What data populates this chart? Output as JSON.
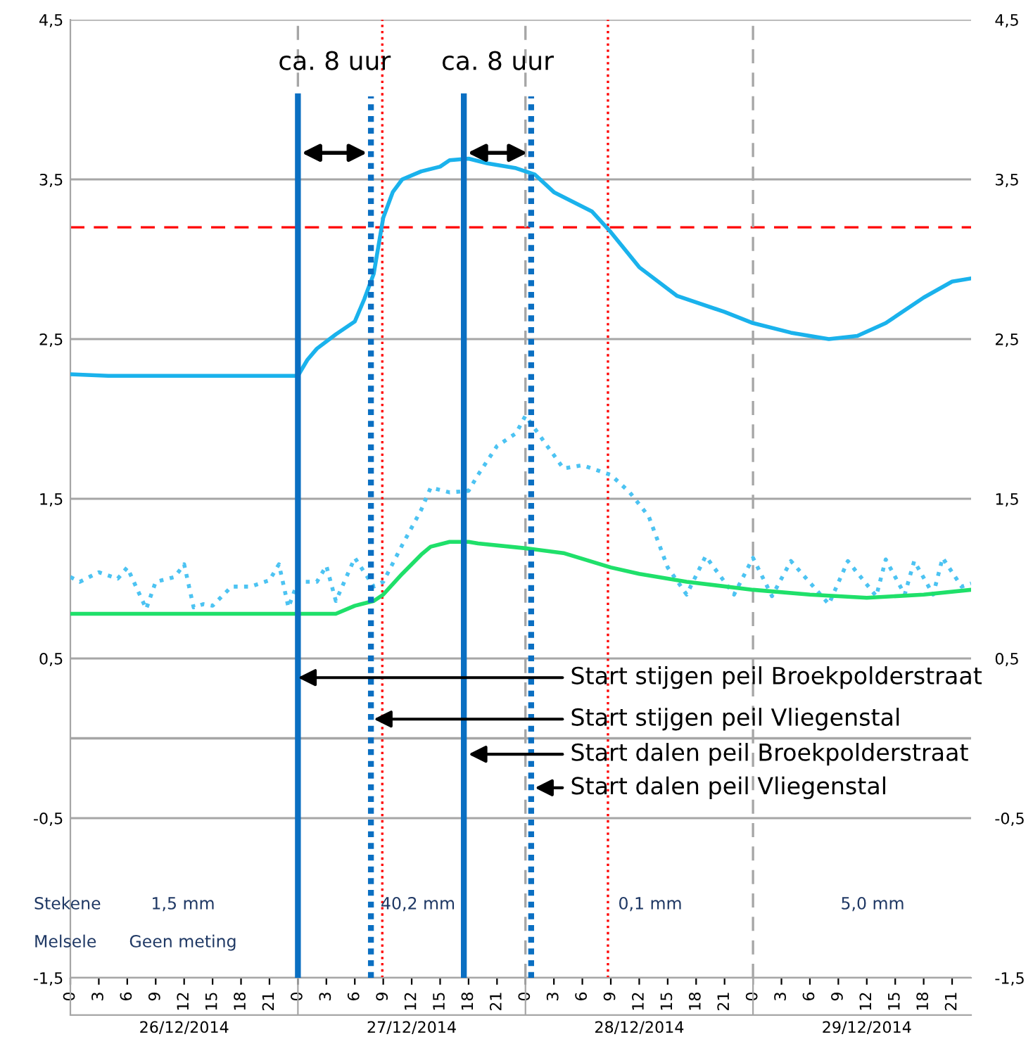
{
  "chart_data": {
    "type": "line",
    "xlim": [
      "2014-12-26T00:00",
      "2014-12-29T23:00"
    ],
    "xticks": [
      {
        "value": "2014-12-26T00:00",
        "label": "0"
      },
      {
        "value": "2014-12-26T03:00",
        "label": "3"
      },
      {
        "value": "2014-12-26T06:00",
        "label": "6"
      },
      {
        "value": "2014-12-26T09:00",
        "label": "9"
      },
      {
        "value": "2014-12-26T12:00",
        "label": "12"
      },
      {
        "value": "2014-12-26T15:00",
        "label": "15"
      },
      {
        "value": "2014-12-26T18:00",
        "label": "18"
      },
      {
        "value": "2014-12-26T21:00",
        "label": "21"
      },
      {
        "value": "2014-12-27T00:00",
        "label": "0"
      },
      {
        "value": "2014-12-27T03:00",
        "label": "3"
      },
      {
        "value": "2014-12-27T06:00",
        "label": "6"
      },
      {
        "value": "2014-12-27T09:00",
        "label": "9"
      },
      {
        "value": "2014-12-27T12:00",
        "label": "12"
      },
      {
        "value": "2014-12-27T15:00",
        "label": "15"
      },
      {
        "value": "2014-12-27T18:00",
        "label": "18"
      },
      {
        "value": "2014-12-27T21:00",
        "label": "21"
      },
      {
        "value": "2014-12-28T00:00",
        "label": "0"
      },
      {
        "value": "2014-12-28T03:00",
        "label": "3"
      },
      {
        "value": "2014-12-28T06:00",
        "label": "6"
      },
      {
        "value": "2014-12-28T09:00",
        "label": "9"
      },
      {
        "value": "2014-12-28T12:00",
        "label": "12"
      },
      {
        "value": "2014-12-28T15:00",
        "label": "15"
      },
      {
        "value": "2014-12-28T18:00",
        "label": "18"
      },
      {
        "value": "2014-12-28T21:00",
        "label": "21"
      },
      {
        "value": "2014-12-29T00:00",
        "label": "0"
      },
      {
        "value": "2014-12-29T03:00",
        "label": "3"
      },
      {
        "value": "2014-12-29T06:00",
        "label": "6"
      },
      {
        "value": "2014-12-29T09:00",
        "label": "9"
      },
      {
        "value": "2014-12-29T12:00",
        "label": "12"
      },
      {
        "value": "2014-12-29T15:00",
        "label": "15"
      },
      {
        "value": "2014-12-29T18:00",
        "label": "18"
      },
      {
        "value": "2014-12-29T21:00",
        "label": "21"
      }
    ],
    "x2lim": [
      "2014-12-26T00:00",
      "2014-12-29T23:00"
    ],
    "x2ticks": [
      {
        "value": "2014-12-26T00:00",
        "label": null
      },
      {
        "value": "2014-12-26T12:00",
        "label": "26/12/2014"
      },
      {
        "value": "2014-12-27T00:00",
        "label": null
      },
      {
        "value": "2014-12-27T12:00",
        "label": "27/12/2014"
      },
      {
        "value": "2014-12-28T00:00",
        "label": null
      },
      {
        "value": "2014-12-28T12:00",
        "label": "28/12/2014"
      },
      {
        "value": "2014-12-29T00:00",
        "label": null
      },
      {
        "value": "2014-12-29T12:00",
        "label": "29/12/2014"
      }
    ],
    "ylim": [
      -1.5,
      4.5
    ],
    "yticks": [
      {
        "value": -1.5,
        "label": "-1,5"
      },
      {
        "value": -0.5,
        "label": "-0,5"
      },
      {
        "value": 0.5,
        "label": "0,5"
      },
      {
        "value": 1.5,
        "label": "1,5"
      },
      {
        "value": 2.5,
        "label": "2,5"
      },
      {
        "value": 3.5,
        "label": "3,5"
      },
      {
        "value": 4.5,
        "label": "4,5"
      }
    ],
    "y2lim": [
      -1.5,
      4.5
    ],
    "y2ticks": [
      {
        "value": -1.5,
        "label": "-1,5"
      },
      {
        "value": -0.5,
        "label": "-0,5"
      },
      {
        "value": 0.5,
        "label": "0,5"
      },
      {
        "value": 1.5,
        "label": "1,5"
      },
      {
        "value": 2.5,
        "label": "2,5"
      },
      {
        "value": 3.5,
        "label": "3,5"
      },
      {
        "value": 4.5,
        "label": "4,5"
      }
    ],
    "grid": "y",
    "series": [
      {
        "color": "#1ab2ec",
        "line_style": "solid",
        "x": [
          "2014-12-26T00:00",
          "2014-12-26T04:00",
          "2014-12-27T00:00",
          "2014-12-27T01:00",
          "2014-12-27T02:00",
          "2014-12-27T04:00",
          "2014-12-27T06:00",
          "2014-12-27T07:00",
          "2014-12-27T08:00",
          "2014-12-27T09:00",
          "2014-12-27T10:00",
          "2014-12-27T11:00",
          "2014-12-27T13:00",
          "2014-12-27T15:00",
          "2014-12-27T16:00",
          "2014-12-27T18:00",
          "2014-12-27T20:00",
          "2014-12-27T23:00",
          "2014-12-28T01:00",
          "2014-12-28T03:00",
          "2014-12-28T07:00",
          "2014-12-28T09:00",
          "2014-12-28T12:00",
          "2014-12-28T16:00",
          "2014-12-28T21:00",
          "2014-12-29T00:00",
          "2014-12-29T04:00",
          "2014-12-29T08:00",
          "2014-12-29T11:00",
          "2014-12-29T14:00",
          "2014-12-29T18:00",
          "2014-12-29T21:00",
          "2014-12-29T23:00"
        ],
        "values": [
          2.28,
          2.27,
          2.27,
          2.37,
          2.44,
          2.53,
          2.61,
          2.75,
          2.91,
          3.26,
          3.42,
          3.5,
          3.55,
          3.58,
          3.62,
          3.63,
          3.6,
          3.57,
          3.53,
          3.42,
          3.3,
          3.17,
          2.95,
          2.77,
          2.67,
          2.6,
          2.54,
          2.5,
          2.52,
          2.6,
          2.76,
          2.86,
          2.88
        ]
      },
      {
        "color": "#4cc3f2",
        "line_style": "dotted",
        "x": [
          "2014-12-26T00:00",
          "2014-12-26T01:00",
          "2014-12-26T03:00",
          "2014-12-26T05:00",
          "2014-12-26T06:00",
          "2014-12-26T08:00",
          "2014-12-26T09:00",
          "2014-12-26T11:00",
          "2014-12-26T12:00",
          "2014-12-26T13:00",
          "2014-12-26T14:00",
          "2014-12-26T15:00",
          "2014-12-26T17:00",
          "2014-12-26T19:00",
          "2014-12-26T21:00",
          "2014-12-26T22:00",
          "2014-12-26T23:00",
          "2014-12-27T00:00",
          "2014-12-27T02:00",
          "2014-12-27T03:00",
          "2014-12-27T04:00",
          "2014-12-27T06:00",
          "2014-12-27T08:00",
          "2014-12-27T09:00",
          "2014-12-27T11:00",
          "2014-12-27T13:00",
          "2014-12-27T14:00",
          "2014-12-27T16:00",
          "2014-12-27T18:00",
          "2014-12-27T19:00",
          "2014-12-27T21:00",
          "2014-12-27T23:00",
          "2014-12-28T00:00",
          "2014-12-28T04:00",
          "2014-12-28T06:00",
          "2014-12-28T09:00",
          "2014-12-28T11:00",
          "2014-12-28T13:00",
          "2014-12-28T15:00",
          "2014-12-28T17:00",
          "2014-12-28T19:00",
          "2014-12-28T22:00",
          "2014-12-29T00:00",
          "2014-12-29T02:00",
          "2014-12-29T04:00",
          "2014-12-29T08:00",
          "2014-12-29T10:00",
          "2014-12-29T13:00",
          "2014-12-29T14:00",
          "2014-12-29T16:00",
          "2014-12-29T17:00",
          "2014-12-29T19:00",
          "2014-12-29T20:00",
          "2014-12-29T22:00",
          "2014-12-29T23:00"
        ],
        "values": [
          1.01,
          0.98,
          1.04,
          1.0,
          1.07,
          0.81,
          0.98,
          1.01,
          1.09,
          0.82,
          0.84,
          0.83,
          0.95,
          0.95,
          0.99,
          1.09,
          0.82,
          0.98,
          0.98,
          1.08,
          0.86,
          1.13,
          0.95,
          0.98,
          1.21,
          1.43,
          1.57,
          1.54,
          1.55,
          1.65,
          1.83,
          1.91,
          2.02,
          1.69,
          1.71,
          1.65,
          1.54,
          1.39,
          1.07,
          0.9,
          1.14,
          0.9,
          1.13,
          0.89,
          1.11,
          0.84,
          1.11,
          0.89,
          1.12,
          0.9,
          1.11,
          0.9,
          1.13,
          0.95,
          0.97
        ]
      },
      {
        "color": "#1fe06a",
        "line_style": "solid",
        "x": [
          "2014-12-26T00:00",
          "2014-12-27T04:00",
          "2014-12-27T06:00",
          "2014-12-27T08:00",
          "2014-12-27T09:00",
          "2014-12-27T11:00",
          "2014-12-27T13:00",
          "2014-12-27T14:00",
          "2014-12-27T16:00",
          "2014-12-27T18:00",
          "2014-12-27T19:00",
          "2014-12-28T00:00",
          "2014-12-28T04:00",
          "2014-12-28T09:00",
          "2014-12-28T12:00",
          "2014-12-28T17:00",
          "2014-12-29T00:00",
          "2014-12-29T06:00",
          "2014-12-29T12:00",
          "2014-12-29T18:00",
          "2014-12-29T23:00"
        ],
        "values": [
          0.78,
          0.78,
          0.83,
          0.86,
          0.9,
          1.03,
          1.15,
          1.2,
          1.23,
          1.23,
          1.22,
          1.19,
          1.16,
          1.07,
          1.03,
          0.98,
          0.93,
          0.9,
          0.88,
          0.9,
          0.93
        ]
      },
      {
        "color": "#0a6fc2",
        "line_style": "solid",
        "x": [
          "2014-12-27T00:00",
          "2014-12-27T00:00"
        ],
        "values": [
          -1.5,
          4.02
        ]
      },
      {
        "color": "#0a6fc2",
        "line_style": "dotted",
        "x": [
          "2014-12-27T07:42",
          "2014-12-27T07:42"
        ],
        "values": [
          -1.5,
          4.02
        ]
      },
      {
        "color": "#0a6fc2",
        "line_style": "solid",
        "x": [
          "2014-12-27T17:30",
          "2014-12-27T17:30"
        ],
        "values": [
          -1.5,
          4.02
        ]
      },
      {
        "color": "#0a6fc2",
        "line_style": "dotted",
        "x": [
          "2014-12-28T00:36",
          "2014-12-28T00:36"
        ],
        "values": [
          -1.5,
          4.02
        ]
      }
    ],
    "ref_lines": [
      {
        "axis": "y",
        "value": 3.2,
        "color": "#ff0000",
        "line_style": "dashed"
      },
      {
        "axis": "y",
        "value": 0,
        "color": "#a6a6a6",
        "line_style": "solid"
      },
      {
        "axis": "x",
        "value": "2014-12-27T00:00",
        "color": "#a6a6a6",
        "line_style": "dashed"
      },
      {
        "axis": "x",
        "value": "2014-12-28T00:00",
        "color": "#a6a6a6",
        "line_style": "dashed"
      },
      {
        "axis": "x",
        "value": "2014-12-29T00:00",
        "color": "#a6a6a6",
        "line_style": "dashed"
      },
      {
        "axis": "x",
        "value": "2014-12-27T08:54",
        "color": "#ff0000",
        "line_style": "dotted"
      },
      {
        "axis": "x",
        "value": "2014-12-28T08:42",
        "color": "#ff0000",
        "line_style": "dotted"
      }
    ],
    "annotations": [
      "ca. 8 uur",
      "ca. 8 uur",
      {
        "text": "Start stijgen peil Broekpolderstraat",
        "x": "2014-12-27T00:00",
        "y": 0.38
      },
      {
        "text": "Start stijgen peil Vliegenstal",
        "x": "2014-12-27T08:00",
        "y": 0.12
      },
      {
        "text": "Start dalen peil Broekpolderstraat",
        "x": "2014-12-27T18:00",
        "y": -0.1
      },
      {
        "text": "Start dalen peil Vliegenstal",
        "x": "2014-12-28T01:00",
        "y": -0.31
      },
      "Stekene",
      "Melsele",
      "1,5 mm",
      "Geen meting",
      "40,2 mm",
      "0,1 mm",
      "5,0 mm"
    ]
  }
}
